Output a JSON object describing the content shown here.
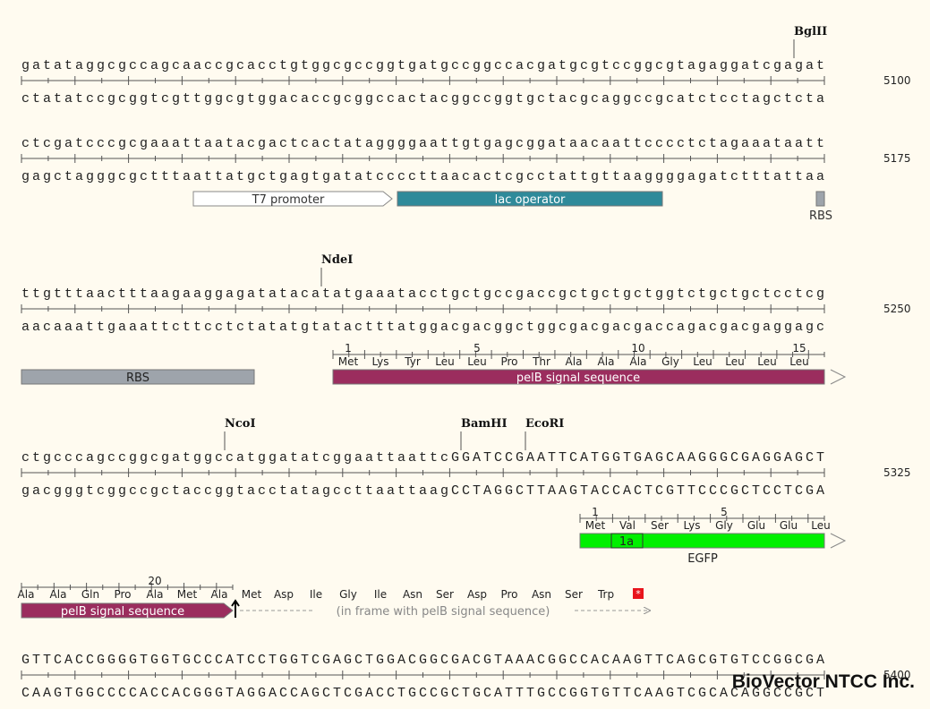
{
  "watermark": "BioVector NTCC Inc.",
  "rows": [
    {
      "top": "gatataggcgccagcaaccgcacctgtggcgccggtgatgccggccacgatgcgtccggcgtagaggatcgagat",
      "bottom": "ctatatccgcggtcgttggcgtggacaccgcggccactacggccggtgctacgcaggccgcatctcctagctcta",
      "position": 5100,
      "sites": [
        "BglII"
      ]
    },
    {
      "top": "ctcgatcccgcgaaattaatacgactcactataggggaattgtgagcggataacaattcccctctagaaataatt",
      "bottom": "gagctagggcgctttaattatgctgagtgatatccccttaacactcgcctattgttaaggggagatctttattaa",
      "position": 5175,
      "features": [
        "T7 promoter",
        "lac operator",
        "RBS"
      ]
    },
    {
      "top": "ttgtttaactttaagaaggagatatacatatgaaatacctgctgccgaccgctgctgctggtctgctgctcctcg",
      "bottom": "aacaaattgaaattcttcctctatatgtatactttatggacgacggctggcgacgacgaccagacgacgaggagc",
      "position": 5250,
      "sites": [
        "NdeI"
      ],
      "translation": {
        "numbers": [
          1,
          5,
          10,
          15
        ],
        "residues": [
          "Met",
          "Lys",
          "Tyr",
          "Leu",
          "Leu",
          "Pro",
          "Thr",
          "Ala",
          "Ala",
          "Ala",
          "Gly",
          "Leu",
          "Leu",
          "Leu",
          "Leu"
        ]
      },
      "features": [
        "RBS",
        "pelB signal sequence"
      ]
    },
    {
      "top": "ctgcccagccggcgatggccatggatatcggaattaattcGGATCCGAATTCATGGTGAGCAAGGGCGAGGAGCT",
      "bottom": "gacgggtcggccgctaccggtacctatagccttaattaagCCTAGGCTTAAGTACCACTCGTTCCCGCTCCTCGA",
      "position": 5325,
      "sites": [
        "NcoI",
        "BamHI",
        "EcoRI"
      ],
      "translation": {
        "numbers": [
          1,
          5
        ],
        "residues": [
          "Met",
          "Val",
          "Ser",
          "Lys",
          "Gly",
          "Glu",
          "Glu",
          "Leu"
        ],
        "segment": "1a"
      },
      "features": [
        "EGFP"
      ]
    },
    {
      "translation": {
        "numbers": [
          20
        ],
        "residues": [
          "Ala",
          "Ala",
          "Gln",
          "Pro",
          "Ala",
          "Met",
          "Ala",
          "Met",
          "Asp",
          "Ile",
          "Gly",
          "Ile",
          "Asn",
          "Ser",
          "Asp",
          "Pro",
          "Asn",
          "Ser",
          "Trp"
        ],
        "stop": "*"
      },
      "features": [
        "pelB signal sequence"
      ],
      "note": "(in frame with pelB signal sequence)"
    },
    {
      "top": "GTTCACCGGGGTGGTGCCCATCCTGGTCGAGCTGGACGGCGACGTAAACGGCCACAAGTTCAGCGTGTCCGGCGA",
      "bottom": "CAAGTGGCCCCACCACGGGTAGGACCAGCTCGACCTGCCGCTGCATTTGCCGGTGTTCAAGTCGCACAGGCCGCT",
      "position": 5400
    }
  ]
}
